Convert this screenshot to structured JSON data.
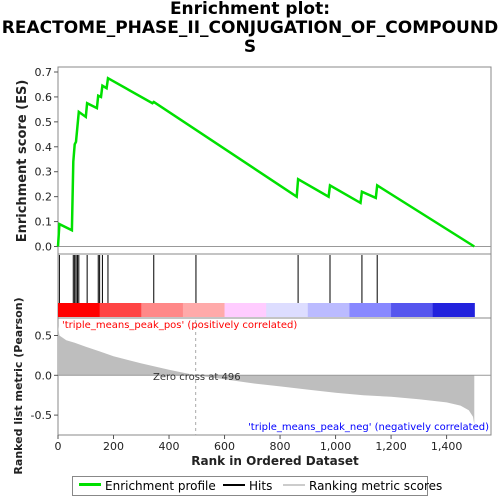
{
  "title_lines": [
    "Enrichment plot:",
    "REACTOME_PHASE_II_CONJUGATION_OF_COMPOUND",
    "S"
  ],
  "colors": {
    "es_line": "#00e000",
    "hit_line": "#000000",
    "metric_fill": "#bebebe",
    "pos_label": "#ff0000",
    "neg_label": "#0000ff"
  },
  "chart_data": [
    {
      "type": "line",
      "ylabel": "Enrichment score (ES)",
      "ylim": [
        -0.03,
        0.72
      ],
      "yticks": [
        0.0,
        0.1,
        0.2,
        0.3,
        0.4,
        0.5,
        0.6,
        0.7
      ],
      "ytick_labels": [
        "0.0",
        "0.1",
        "0.2",
        "0.3",
        "0.4",
        "0.5",
        "0.6",
        "0.7"
      ],
      "xlim": [
        0,
        1560
      ],
      "series": [
        {
          "name": "Enrichment profile",
          "x": [
            0,
            5,
            50,
            55,
            60,
            65,
            70,
            75,
            100,
            105,
            140,
            145,
            155,
            160,
            175,
            180,
            340,
            345,
            860,
            865,
            975,
            980,
            1090,
            1095,
            1145,
            1150,
            1500
          ],
          "y": [
            0.0,
            0.09,
            0.065,
            0.34,
            0.41,
            0.42,
            0.48,
            0.54,
            0.52,
            0.575,
            0.555,
            0.605,
            0.6,
            0.645,
            0.635,
            0.675,
            0.575,
            0.58,
            0.2,
            0.27,
            0.2,
            0.245,
            0.175,
            0.22,
            0.195,
            0.245,
            0.0
          ]
        }
      ]
    },
    {
      "type": "hits",
      "hit_positions": [
        5,
        55,
        60,
        65,
        70,
        75,
        105,
        145,
        150,
        160,
        180,
        345,
        497,
        865,
        980,
        1095,
        1150
      ],
      "gradient_colors": [
        "#ff0000",
        "#ff4444",
        "#ff8888",
        "#ffaaaa",
        "#ffccff",
        "#ddddff",
        "#bbbbff",
        "#8888ff",
        "#5555ee",
        "#2222dd"
      ]
    },
    {
      "type": "area",
      "ylabel": "Ranked list metric (Pearson)",
      "xlabel": "Rank in Ordered Dataset",
      "ylim": [
        -0.75,
        0.72
      ],
      "yticks": [
        -0.5,
        0.0,
        0.5
      ],
      "ytick_labels": [
        "-0.5",
        "0.0",
        "0.5"
      ],
      "xticks": [
        0,
        200,
        400,
        600,
        800,
        1000,
        1200,
        1400
      ],
      "xtick_labels": [
        "0",
        "200",
        "400",
        "600",
        "800",
        "1,000",
        "1,200",
        "1,400"
      ],
      "x": [
        0,
        5,
        30,
        60,
        100,
        150,
        200,
        300,
        400,
        496,
        600,
        700,
        800,
        900,
        1000,
        1100,
        1200,
        1300,
        1400,
        1450,
        1480,
        1495,
        1500
      ],
      "y": [
        0.62,
        0.5,
        0.44,
        0.41,
        0.36,
        0.3,
        0.24,
        0.15,
        0.07,
        0.0,
        -0.05,
        -0.1,
        -0.14,
        -0.18,
        -0.22,
        -0.25,
        -0.27,
        -0.3,
        -0.34,
        -0.38,
        -0.44,
        -0.52,
        -0.62
      ],
      "zero_cross_label": "Zero cross at 496",
      "zero_cross_x": 496,
      "pos_label": "'triple_means_peak_pos' (positively correlated)",
      "neg_label": "'triple_means_peak_neg' (negatively correlated)"
    }
  ],
  "legend": {
    "items": [
      {
        "label": "Enrichment profile"
      },
      {
        "label": "Hits"
      },
      {
        "label": "Ranking metric scores"
      }
    ]
  }
}
